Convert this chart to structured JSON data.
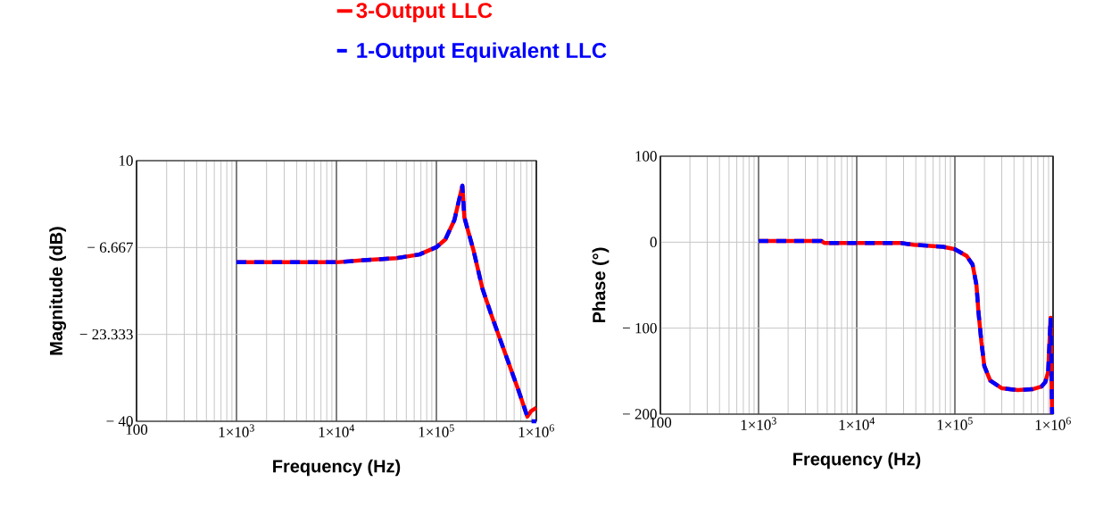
{
  "chart_data": [
    {
      "type": "line",
      "xlabel": "Frequency (Hz)",
      "ylabel": "Magnitude (dB)",
      "log": "x",
      "grid": true,
      "legend": "top",
      "xlim": [
        100,
        1000000
      ],
      "ylim": [
        -40,
        10
      ],
      "xticks": [
        100,
        {
          "value": 1000,
          "label": "1×10$^{3}$"
        },
        {
          "value": 10000,
          "label": "1×10$^{4}$"
        },
        {
          "value": 100000,
          "label": "1×10$^{5}$"
        },
        {
          "value": 1000000,
          "label": "1×10$^{6}$"
        }
      ],
      "yticks": [
        10,
        {
          "value": -6.667,
          "label": "− 6.667"
        },
        {
          "value": -23.333,
          "label": "− 23.333"
        },
        {
          "value": -40,
          "label": "− 40"
        }
      ],
      "series": [
        {
          "name": "3-Output LLC",
          "color": "#ff0000",
          "line_style": "solid",
          "x": [
            1000,
            3162,
            10000,
            18620,
            39810,
            67610,
            100000,
            123000,
            151400,
            182000,
            190500,
            234400,
            288400,
            354800,
            467700,
            660700,
            812800,
            891300,
            1000000
          ],
          "values": [
            -9.5,
            -9.5,
            -9.5,
            -9.1,
            -8.7,
            -8.0,
            -6.6,
            -5.1,
            -1.4,
            5.2,
            -0.9,
            -7.1,
            -14.5,
            -19.6,
            -26,
            -34,
            -39.1,
            -38,
            -37.4
          ]
        },
        {
          "name": "1-Output Equivalent LLC",
          "color": "#0000ff",
          "line_style": "dashed",
          "x": [
            1000,
            3162,
            10000,
            18620,
            39810,
            67610,
            100000,
            123000,
            151400,
            182000,
            190500,
            234400,
            288400,
            354800,
            467700,
            660700,
            812800,
            891300,
            1000000
          ],
          "values": [
            -9.5,
            -9.5,
            -9.5,
            -9.1,
            -8.7,
            -8.0,
            -6.6,
            -5.1,
            -1.4,
            5.2,
            -0.9,
            -7.1,
            -14.5,
            -19.6,
            -26,
            -34,
            -39.1,
            -40,
            -40
          ]
        }
      ]
    },
    {
      "type": "line",
      "xlabel": "Frequency (Hz)",
      "ylabel": "Phase (°)",
      "log": "x",
      "grid": true,
      "xlim": [
        100,
        1000000
      ],
      "ylim": [
        -200,
        100
      ],
      "xticks": [
        100,
        {
          "value": 1000,
          "label": "1×10$^{3}$"
        },
        {
          "value": 10000,
          "label": "1×10$^{4}$"
        },
        {
          "value": 100000,
          "label": "1×10$^{5}$"
        },
        {
          "value": 1000000,
          "label": "1×10$^{6}$"
        }
      ],
      "yticks": [
        100,
        0,
        {
          "value": -100,
          "label": "− 100"
        },
        {
          "value": -200,
          "label": "− 200"
        }
      ],
      "series": [
        {
          "color": "#ff0000",
          "line_style": "solid",
          "x": [
            1000,
            4365,
            4677,
            28180,
            38020,
            75860,
            100000,
            131800,
            151400,
            166000,
            173800,
            186200,
            199500,
            229100,
            302000,
            436500,
            616600,
            758600,
            831800,
            891300,
            944100,
            977200
          ],
          "values": [
            1.5,
            1.5,
            -1,
            -1,
            -3,
            -5.4,
            -8.2,
            -16,
            -26,
            -50,
            -81,
            -116,
            -144,
            -161,
            -170,
            -172,
            -171,
            -168,
            -163,
            -151,
            -88,
            -200
          ]
        },
        {
          "color": "#0000ff",
          "line_style": "dashed",
          "x": [
            1000,
            4365,
            4677,
            28180,
            38020,
            75860,
            100000,
            131800,
            151400,
            166000,
            173800,
            186200,
            199500,
            229100,
            302000,
            436500,
            616600,
            758600,
            831800,
            891300,
            944100,
            977200
          ],
          "values": [
            1.5,
            1.5,
            -1,
            -1,
            -3,
            -5.4,
            -8.2,
            -16,
            -26,
            -50,
            -81,
            -116,
            -144,
            -161,
            -170,
            -172,
            -171,
            -168,
            -163,
            -151,
            -88,
            -200
          ]
        }
      ]
    }
  ]
}
